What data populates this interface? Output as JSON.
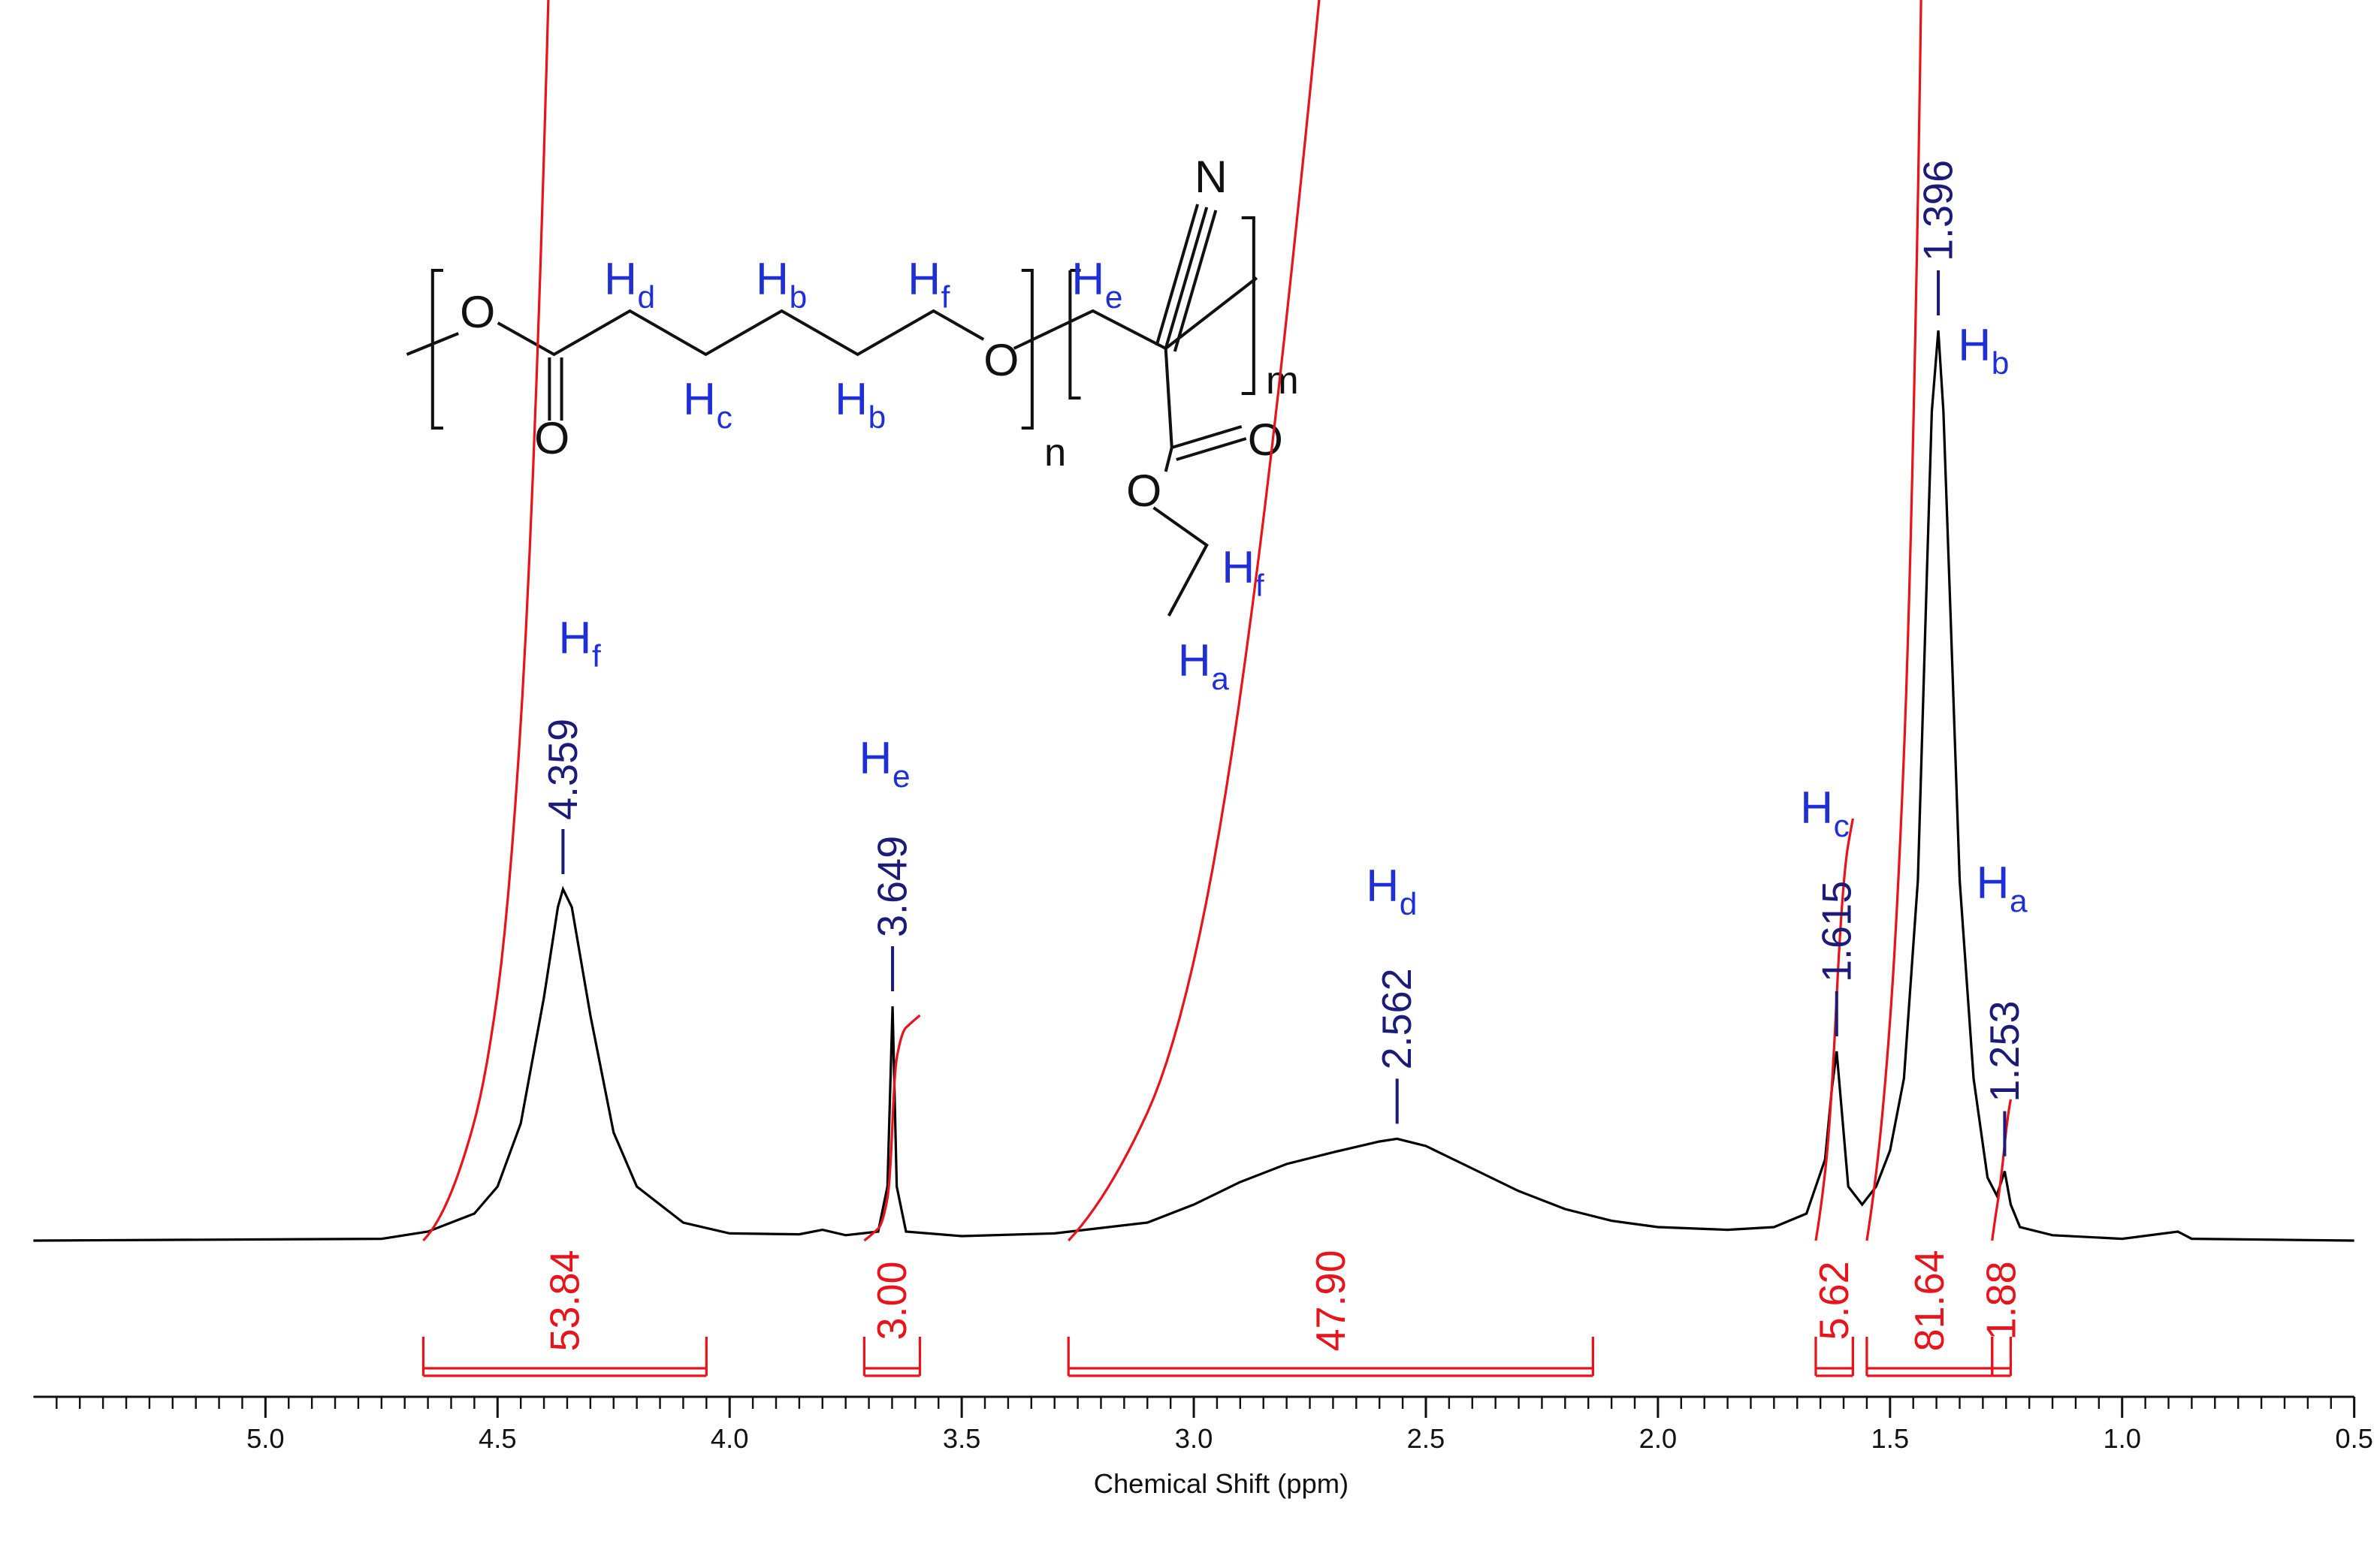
{
  "chart_data": {
    "type": "nmr",
    "xlabel": "Chemical Shift (ppm)",
    "xlim": [
      5.5,
      0.5
    ],
    "ylim": [
      0,
      100
    ],
    "xticks": [
      {
        "value": 5,
        "label": "5.0"
      },
      {
        "value": 4.5,
        "label": "4.5"
      },
      {
        "value": 4,
        "label": "4.0"
      },
      {
        "value": 3.5,
        "label": "3.5"
      },
      {
        "value": 3,
        "label": "3.0"
      },
      {
        "value": 2.5,
        "label": "2.5"
      },
      {
        "value": 2,
        "label": "2.0"
      },
      {
        "value": 1.5,
        "label": "1.5"
      },
      {
        "value": 1,
        "label": "1.0"
      },
      {
        "value": 0.5,
        "label": "0.5"
      }
    ],
    "xminorticks": [
      5.45,
      5.4,
      5.35,
      5.3,
      5.25,
      5.2,
      5.15,
      5.1,
      5.05,
      4.95,
      4.9,
      4.85,
      4.8,
      4.75,
      4.7,
      4.65,
      4.6,
      4.55,
      4.45,
      4.4,
      4.35,
      4.3,
      4.25,
      4.2,
      4.15,
      4.1,
      4.05,
      3.95,
      3.9,
      3.85,
      3.8,
      3.75,
      3.7,
      3.65,
      3.6,
      3.55,
      3.45,
      3.4,
      3.35,
      3.3,
      3.25,
      3.2,
      3.15,
      3.1,
      3.05,
      2.95,
      2.9,
      2.85,
      2.8,
      2.75,
      2.7,
      2.65,
      2.6,
      2.55,
      2.45,
      2.4,
      2.35,
      2.3,
      2.25,
      2.2,
      2.15,
      2.1,
      2.05,
      1.95,
      1.9,
      1.85,
      1.8,
      1.75,
      1.7,
      1.65,
      1.6,
      1.55,
      1.45,
      1.4,
      1.35,
      1.3,
      1.25,
      1.2,
      1.15,
      1.1,
      1.05,
      0.95,
      0.9,
      0.85,
      0.8,
      0.75,
      0.7,
      0.65,
      0.6,
      0.55
    ],
    "x": [
      5.5,
      4.75,
      4.65,
      4.55,
      4.5,
      4.45,
      4.4,
      4.37,
      4.359,
      4.34,
      4.3,
      4.25,
      4.2,
      4.1,
      4.0,
      3.85,
      3.8,
      3.75,
      3.68,
      3.66,
      3.649,
      3.64,
      3.62,
      3.5,
      3.3,
      3.1,
      3.0,
      2.9,
      2.8,
      2.7,
      2.6,
      2.562,
      2.5,
      2.4,
      2.3,
      2.2,
      2.1,
      2.0,
      1.85,
      1.75,
      1.68,
      1.64,
      1.625,
      1.615,
      1.605,
      1.59,
      1.56,
      1.53,
      1.5,
      1.47,
      1.44,
      1.42,
      1.41,
      1.396,
      1.385,
      1.37,
      1.35,
      1.32,
      1.29,
      1.27,
      1.253,
      1.24,
      1.22,
      1.15,
      1.0,
      0.88,
      0.85,
      0.5
    ],
    "series": [
      {
        "color": "#000000",
        "values": [
          0,
          0.2,
          1,
          3,
          6,
          13,
          27,
          37,
          39,
          37,
          25,
          12,
          6,
          2,
          0.8,
          0.7,
          1.2,
          0.6,
          1,
          6,
          26,
          6,
          1,
          0.5,
          0.8,
          2,
          4,
          6.5,
          8.5,
          9.8,
          11,
          11.3,
          10.5,
          8,
          5.5,
          3.5,
          2.2,
          1.5,
          1.2,
          1.5,
          3,
          9,
          17,
          21,
          15,
          6,
          4,
          6,
          10,
          18,
          40,
          75,
          92,
          101,
          92,
          70,
          40,
          18,
          7,
          5,
          7.7,
          4,
          1.5,
          0.6,
          0.2,
          1,
          0.2,
          0
        ]
      }
    ],
    "peaks": {
      "color": "#1c1c78",
      "values": [
        4.359,
        3.649,
        2.562,
        1.615,
        1.396,
        1.253
      ],
      "assignments": [
        {
          "main": "H",
          "sub": "f"
        },
        {
          "main": "H",
          "sub": "e"
        },
        {
          "main": "H",
          "sub": "d"
        },
        {
          "main": "H",
          "sub": "c"
        },
        {
          "main": "H",
          "sub": "b"
        },
        {
          "main": "H",
          "sub": "a"
        }
      ]
    },
    "integrals": {
      "color": "#e8141c",
      "ranges": [
        [
          4.66,
          4.05
        ],
        [
          3.71,
          3.59
        ],
        [
          3.27,
          2.14
        ],
        [
          1.66,
          1.58
        ],
        [
          1.55,
          1.28
        ],
        [
          1.28,
          1.24
        ]
      ],
      "values": [
        53.84,
        3,
        47.9,
        5.62,
        81.64,
        1.88
      ],
      "value_labels": [
        "53.84",
        "3.00",
        "47.90",
        "5.62",
        "81.64",
        "1.88"
      ]
    }
  },
  "structure": {
    "atoms": [
      "O",
      "O",
      "O",
      "N",
      "O",
      "O"
    ],
    "repeats": [
      "n",
      "m"
    ],
    "protons": [
      {
        "main": "H",
        "sub": "d"
      },
      {
        "main": "H",
        "sub": "b"
      },
      {
        "main": "H",
        "sub": "f"
      },
      {
        "main": "H",
        "sub": "e"
      },
      {
        "main": "H",
        "sub": "c"
      },
      {
        "main": "H",
        "sub": "b"
      },
      {
        "main": "H",
        "sub": "f"
      },
      {
        "main": "H",
        "sub": "a"
      }
    ]
  }
}
